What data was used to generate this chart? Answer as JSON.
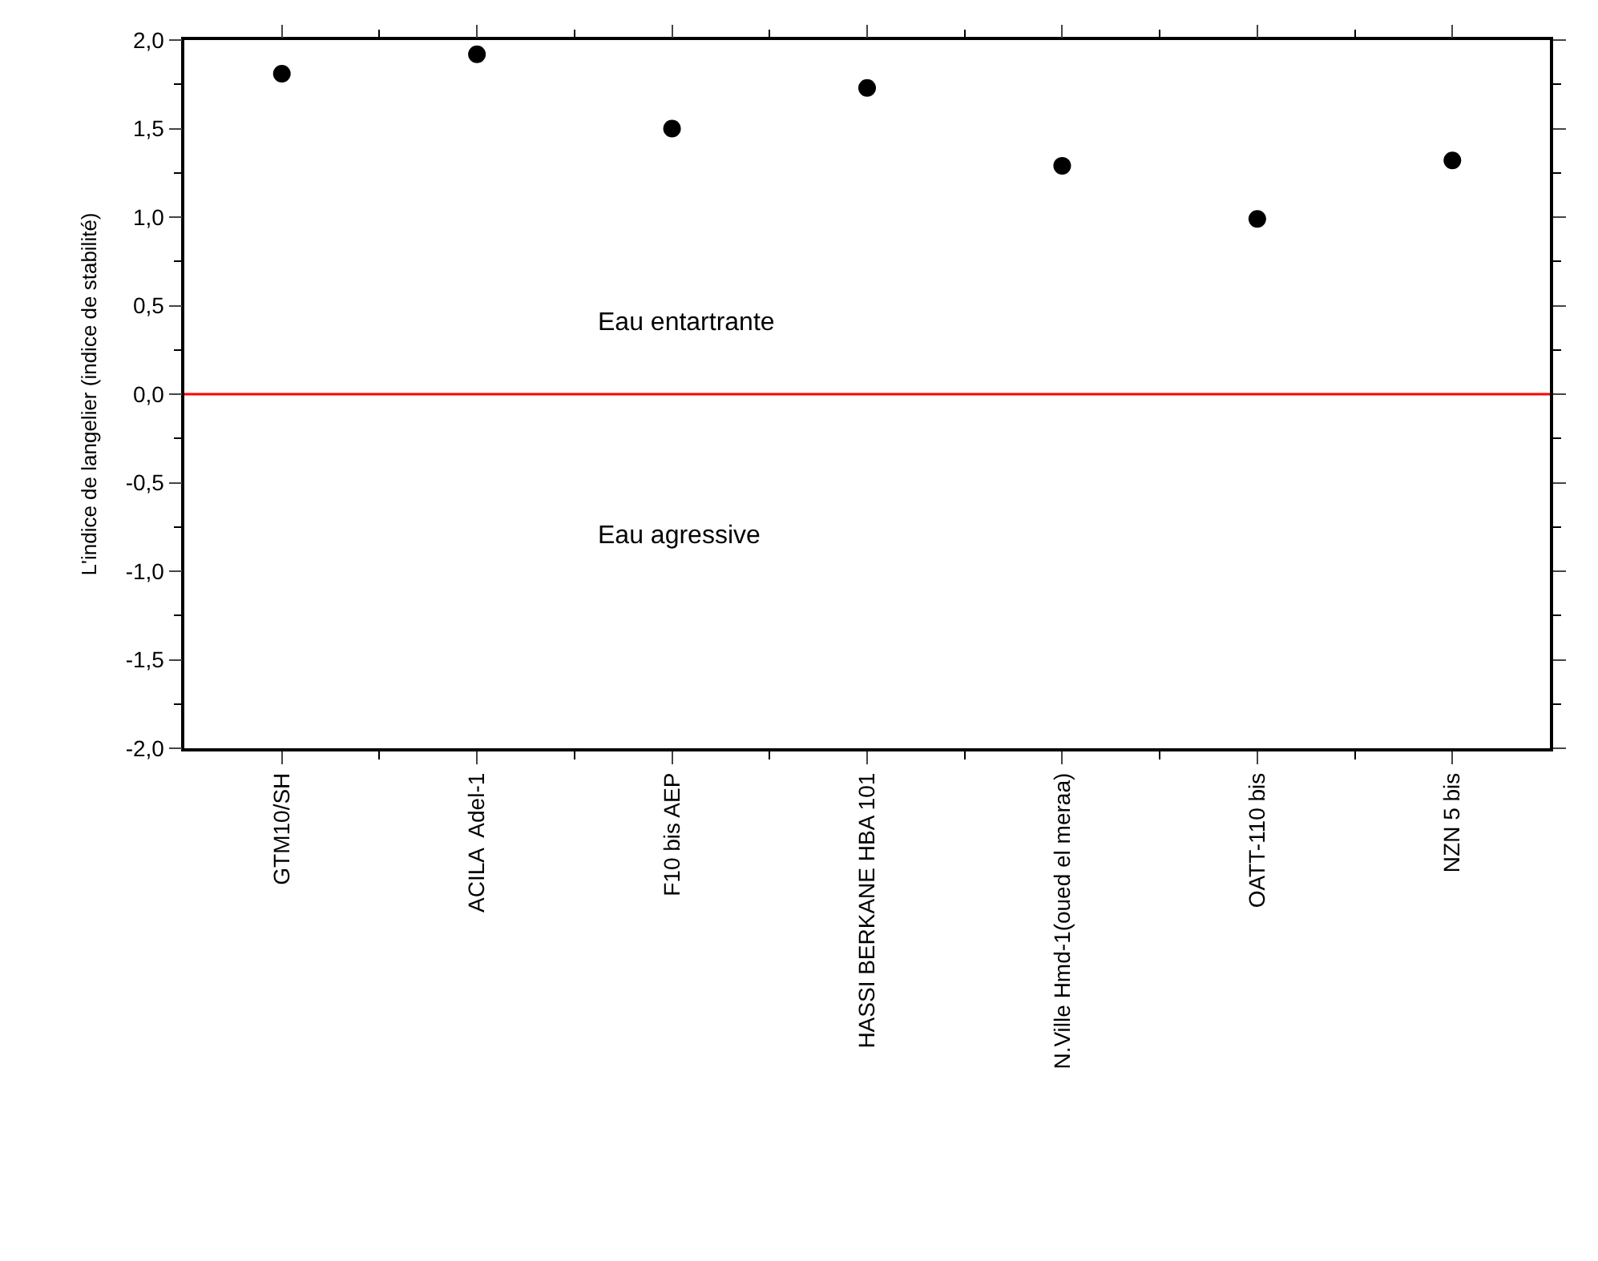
{
  "chart_data": {
    "type": "scatter",
    "ylabel": "L'indice de langelier (indice de stabilité)",
    "categories": [
      "GTM10/SH",
      "ACILA  Adel-1",
      "F10 bis AEP",
      "HASSI BERKANE HBA 101",
      "N.Ville Hmd-1(oued el meraa)",
      "OATT-110 bis",
      "NZN 5 bis"
    ],
    "series": [
      {
        "color": "#000000",
        "values": [
          1.81,
          1.92,
          1.5,
          1.73,
          1.29,
          0.99,
          1.32
        ]
      }
    ],
    "ylim": [
      -2.0,
      2.0
    ],
    "yticks": [
      {
        "value": -2.0,
        "label": "-2,0"
      },
      {
        "value": -1.5,
        "label": "-1,5"
      },
      {
        "value": -1.0,
        "label": "-1,0"
      },
      {
        "value": -0.5,
        "label": "-0,5"
      },
      {
        "value": 0.0,
        "label": "0,0"
      },
      {
        "value": 0.5,
        "label": "0,5"
      },
      {
        "value": 1.0,
        "label": "1,0"
      },
      {
        "value": 1.5,
        "label": "1,5"
      },
      {
        "value": 2.0,
        "label": "2,0"
      }
    ],
    "ref_lines": [
      {
        "axis": "y",
        "value": 0,
        "color": "#ff0000"
      }
    ],
    "annotations": [
      "Eau entartrante",
      "Eau agressive"
    ],
    "marker": "circle",
    "grid": false
  }
}
